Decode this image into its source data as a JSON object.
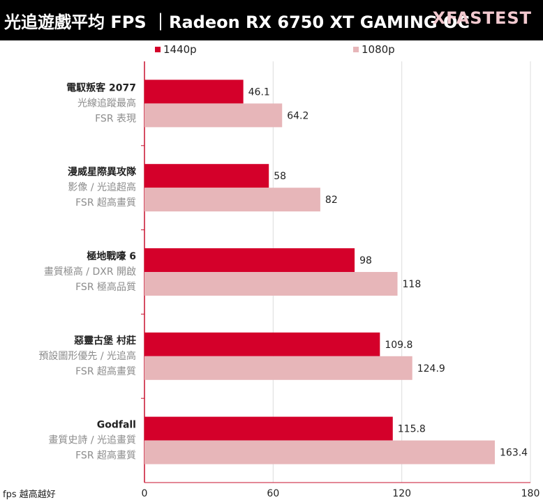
{
  "header": {
    "title": "光追遊戲平均 FPS ｜Radeon RX 6750 XT GAMING OC",
    "brand": "XFASTEST"
  },
  "colors": {
    "s1440": "#d4002a",
    "s1080": "#e7b6b9",
    "header_bg": "#000000",
    "brand": "#f2c9cf"
  },
  "chart_data": {
    "type": "bar",
    "orientation": "horizontal",
    "categories": [
      {
        "title": "電馭叛客 2077",
        "sub1": "光線追蹤最高",
        "sub2": "FSR 表現"
      },
      {
        "title": "漫威星際異攻隊",
        "sub1": "影像 / 光追超高",
        "sub2": "FSR 超高畫質"
      },
      {
        "title": "極地戰嚎 6",
        "sub1": "畫質極高 / DXR 開啟",
        "sub2": "FSR 極高品質"
      },
      {
        "title": "惡靈古堡 村莊",
        "sub1": "預設圖形優先 / 光追高",
        "sub2": "FSR 超高畫質"
      },
      {
        "title": "Godfall",
        "sub1": "畫質史詩 / 光追畫質",
        "sub2": "FSR 超高畫質"
      }
    ],
    "series": [
      {
        "name": "1440p",
        "values": [
          46.1,
          58,
          98,
          109.8,
          115.8
        ]
      },
      {
        "name": "1080p",
        "values": [
          64.2,
          82,
          118,
          124.9,
          163.4
        ]
      }
    ],
    "xlim": [
      0,
      180
    ],
    "xticks": [
      0,
      60,
      120,
      180
    ],
    "xlabel": "fps 越高越好",
    "grid": true,
    "legend": "top"
  }
}
